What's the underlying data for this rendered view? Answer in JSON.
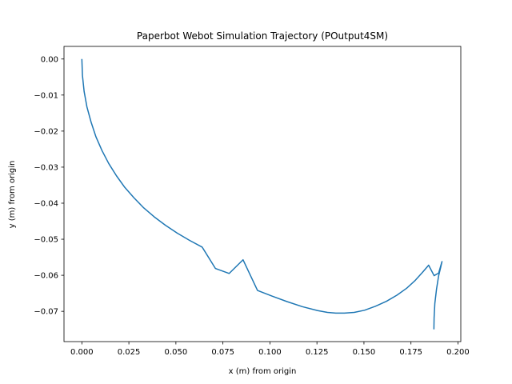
{
  "chart_data": {
    "type": "line",
    "title": "Paperbot Webot Simulation Trajectory (POutput4SM)",
    "xlabel": "x (m) from origin",
    "ylabel": "y (m) from origin",
    "xlim": [
      -0.0095,
      0.2015
    ],
    "ylim": [
      -0.0784,
      0.0035
    ],
    "grid": false,
    "xticks": [
      0.0,
      0.025,
      0.05,
      0.075,
      0.1,
      0.125,
      0.15,
      0.175,
      0.2
    ],
    "xtick_labels": [
      "0.000",
      "0.025",
      "0.050",
      "0.075",
      "0.100",
      "0.125",
      "0.150",
      "0.175",
      "0.200"
    ],
    "yticks": [
      0.0,
      -0.01,
      -0.02,
      -0.03,
      -0.04,
      -0.05,
      -0.06,
      -0.07
    ],
    "ytick_labels": [
      "0.00",
      "−0.01",
      "−0.02",
      "−0.03",
      "−0.04",
      "−0.05",
      "−0.06",
      "−0.07"
    ],
    "series": [
      {
        "color": "#1f77b4",
        "x": [
          0.0,
          0.0003,
          0.0012,
          0.0027,
          0.0049,
          0.0075,
          0.0107,
          0.0143,
          0.0184,
          0.0228,
          0.0277,
          0.0329,
          0.0385,
          0.0444,
          0.0507,
          0.0572,
          0.064,
          0.071,
          0.0783,
          0.0857,
          0.0934,
          0.1012,
          0.1091,
          0.1172,
          0.1254,
          0.1306,
          0.135,
          0.1396,
          0.1448,
          0.1503,
          0.1561,
          0.162,
          0.1676,
          0.1727,
          0.1773,
          0.1811,
          0.1844,
          0.1873,
          0.1897,
          0.1915,
          0.1908,
          0.1897,
          0.1886,
          0.1877,
          0.1873,
          0.1872
        ],
        "y": [
          0.0,
          -0.0045,
          -0.009,
          -0.0133,
          -0.0175,
          -0.0216,
          -0.0254,
          -0.029,
          -0.0324,
          -0.0356,
          -0.0385,
          -0.0413,
          -0.0438,
          -0.0461,
          -0.0483,
          -0.0503,
          -0.0522,
          -0.0581,
          -0.0595,
          -0.0557,
          -0.0642,
          -0.0658,
          -0.0673,
          -0.0687,
          -0.0698,
          -0.0703,
          -0.0705,
          -0.0705,
          -0.0703,
          -0.0697,
          -0.0686,
          -0.0672,
          -0.0655,
          -0.0636,
          -0.0614,
          -0.0592,
          -0.0572,
          -0.0601,
          -0.0594,
          -0.0562,
          -0.0578,
          -0.0602,
          -0.0638,
          -0.0678,
          -0.0718,
          -0.075
        ]
      }
    ]
  }
}
